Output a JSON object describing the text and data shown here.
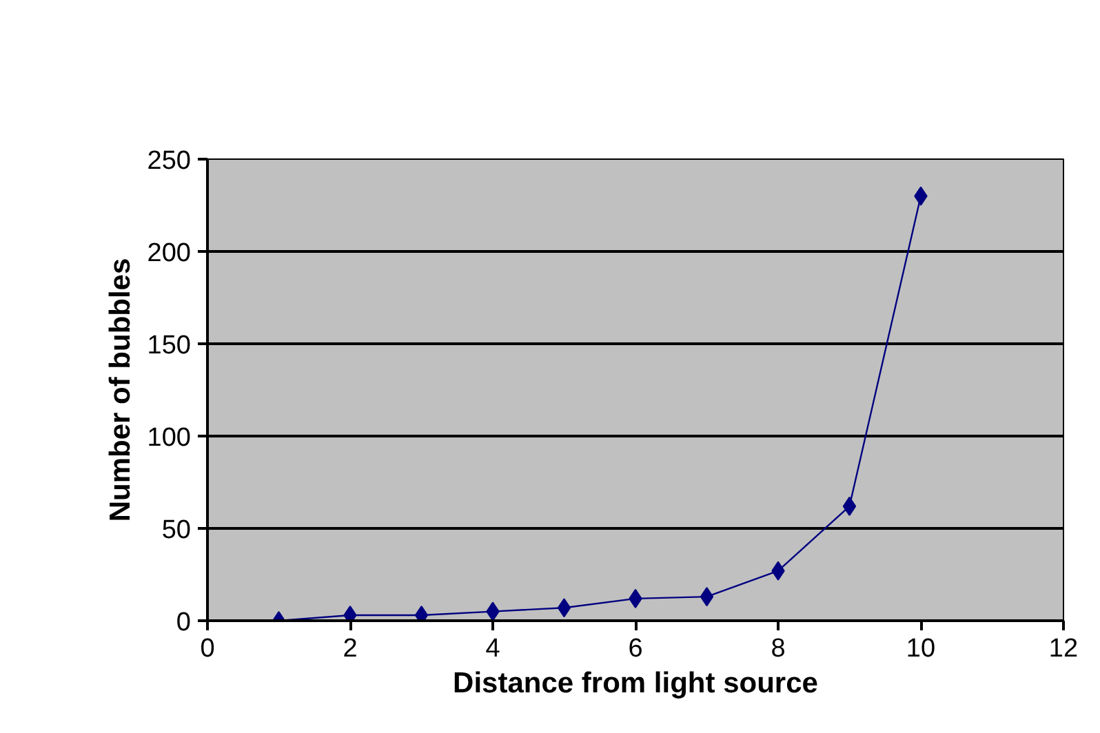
{
  "chart_data": {
    "type": "line",
    "xlabel": "Distance from light source",
    "ylabel": "Number of bubbles",
    "x": [
      1,
      2,
      3,
      4,
      5,
      6,
      7,
      8,
      9,
      10
    ],
    "series": [
      {
        "color": "#000080",
        "values": [
          0,
          3,
          3,
          5,
          7,
          12,
          13,
          27,
          62,
          230
        ]
      }
    ],
    "xlim": [
      0,
      12
    ],
    "xticks": [
      0,
      2,
      4,
      6,
      8,
      10,
      12
    ],
    "ylim": [
      0,
      250
    ],
    "yticks": [
      0,
      50,
      100,
      150,
      200,
      250
    ],
    "grid": "y",
    "marker": "diamond"
  }
}
